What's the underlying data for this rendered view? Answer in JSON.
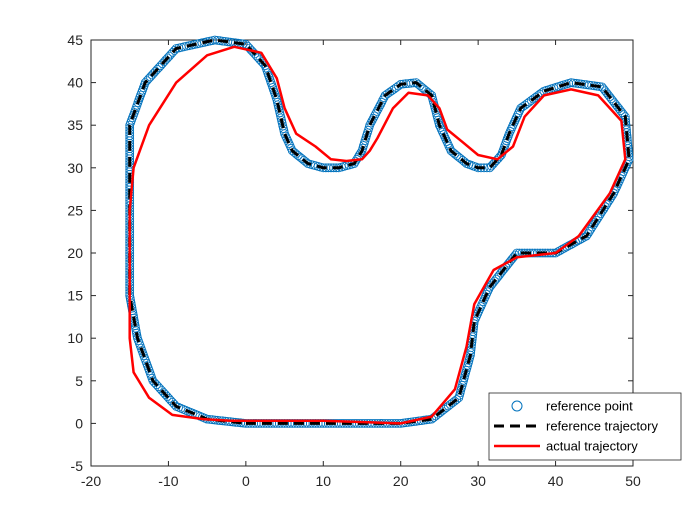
{
  "chart_data": {
    "type": "line",
    "title": "",
    "xlabel": "",
    "ylabel": "",
    "xlim": [
      -20,
      50
    ],
    "ylim": [
      -5,
      45
    ],
    "xticks": [
      -20,
      -10,
      0,
      10,
      20,
      30,
      40,
      50
    ],
    "yticks": [
      -5,
      0,
      5,
      10,
      15,
      20,
      25,
      30,
      35,
      40,
      45
    ],
    "grid": false,
    "legend_position": "bottom-right",
    "series": [
      {
        "name": "reference point",
        "style": "markers",
        "marker": "circle",
        "color": "#0072BD",
        "x": [
          0,
          5,
          10,
          15,
          20,
          24,
          27.5,
          29,
          29.5,
          31.5,
          35,
          40,
          44,
          47.5,
          49.5,
          49,
          46,
          42,
          38.5,
          35.5,
          34,
          33,
          31.5,
          30,
          28.5,
          26.5,
          25,
          24,
          22,
          20,
          18,
          16,
          15,
          14,
          12,
          10,
          8,
          6,
          5,
          4,
          2.5,
          0,
          -4,
          -9,
          -13,
          -15,
          -15,
          -15,
          -15,
          -14,
          -12,
          -9,
          -5,
          0
        ],
        "y": [
          0,
          0,
          0,
          0,
          0,
          0.5,
          3,
          8,
          12,
          16,
          20,
          20,
          22,
          27,
          31,
          36,
          39.5,
          40,
          39,
          37,
          34,
          31.5,
          30,
          30,
          30.5,
          32,
          35,
          38.5,
          40,
          39.8,
          38.5,
          35,
          32,
          30.5,
          30,
          30,
          30.5,
          32,
          34,
          38,
          42,
          44.5,
          45,
          44,
          40,
          35,
          28,
          20,
          15,
          10,
          5,
          2,
          0.5,
          0
        ]
      },
      {
        "name": "reference trajectory",
        "style": "dashed",
        "color": "#000000",
        "x": [
          0,
          5,
          10,
          15,
          20,
          24,
          27.5,
          29,
          29.5,
          31.5,
          35,
          40,
          44,
          47.5,
          49.5,
          49,
          46,
          42,
          38.5,
          35.5,
          34,
          33,
          31.5,
          30,
          28.5,
          26.5,
          25,
          24,
          22,
          20,
          18,
          16,
          15,
          14,
          12,
          10,
          8,
          6,
          5,
          4,
          2.5,
          0,
          -4,
          -9,
          -13,
          -15,
          -15,
          -15,
          -15,
          -14,
          -12,
          -9,
          -5,
          0
        ],
        "y": [
          0,
          0,
          0,
          0,
          0,
          0.5,
          3,
          8,
          12,
          16,
          20,
          20,
          22,
          27,
          31,
          36,
          39.5,
          40,
          39,
          37,
          34,
          31.5,
          30,
          30,
          30.5,
          32,
          35,
          38.5,
          40,
          39.8,
          38.5,
          35,
          32,
          30.5,
          30,
          30,
          30.5,
          32,
          34,
          38,
          42,
          44.5,
          45,
          44,
          40,
          35,
          28,
          20,
          15,
          10,
          5,
          2,
          0.5,
          0
        ]
      },
      {
        "name": "actual trajectory",
        "style": "solid",
        "color": "#FF0000",
        "x": [
          0,
          10,
          20,
          24,
          27,
          28.5,
          29.5,
          32,
          35,
          40,
          43,
          47,
          49,
          48.5,
          45.5,
          42,
          38.5,
          36,
          34.5,
          32.5,
          30,
          28,
          26,
          25,
          23.5,
          21,
          19,
          17,
          16,
          15,
          13,
          11,
          9,
          6.5,
          5,
          4,
          2,
          -1.5,
          -5,
          -9,
          -12.5,
          -14.5,
          -15,
          -15,
          -15,
          -14.5,
          -12.5,
          -9.5,
          -5.5,
          -2,
          0
        ],
        "y": [
          0.3,
          0.3,
          0,
          0.8,
          4,
          9,
          14,
          18,
          19.5,
          20,
          22,
          27,
          31,
          35.5,
          38.5,
          39.2,
          38.5,
          36,
          32.5,
          31,
          31.5,
          33,
          34.5,
          37,
          38.5,
          38.8,
          37,
          33.5,
          32,
          31,
          30.8,
          31,
          32.5,
          34,
          37,
          40.5,
          43.5,
          44.2,
          43.2,
          40,
          35,
          30,
          25,
          17,
          10,
          6,
          3,
          1,
          0.5,
          0.3,
          0.3
        ]
      }
    ]
  }
}
